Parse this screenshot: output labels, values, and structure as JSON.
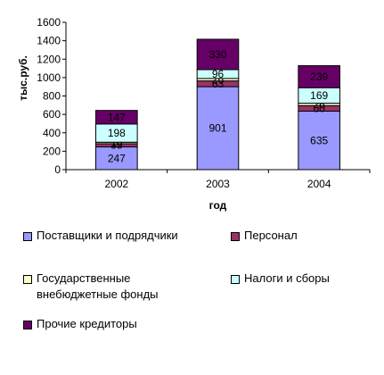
{
  "chart_data": {
    "type": "bar",
    "stacked": true,
    "categories": [
      "2002",
      "2003",
      "2004"
    ],
    "xlabel": "год",
    "ylabel": "тыс.руб.",
    "ylim": [
      0,
      1600
    ],
    "yticks": [
      "0",
      "200",
      "400",
      "600",
      "800",
      "1000",
      "1200",
      "1400",
      "1600"
    ],
    "grid": false,
    "legend_position": "bottom",
    "series": [
      {
        "name": "Поставщики и подрядчики",
        "values": [
          247,
          901,
          635
        ],
        "labels": [
          "247",
          "901",
          "635"
        ],
        "color": "#9999ff",
        "label_color": "#000000"
      },
      {
        "name": "Персонал",
        "values": [
          35,
          63,
          60
        ],
        "labels": [
          "35",
          "63",
          "60"
        ],
        "color": "#993366",
        "label_color": "#000000"
      },
      {
        "name": "Государственные\nвнебюджетные фонды",
        "values": [
          16,
          26,
          26
        ],
        "labels": [
          "16",
          "26",
          "26"
        ],
        "color": "#ffffcc",
        "label_color": "#000000"
      },
      {
        "name": "Налоги и сборы",
        "values": [
          198,
          96,
          169
        ],
        "labels": [
          "198",
          "96",
          "169"
        ],
        "color": "#ccffff",
        "label_color": "#000000"
      },
      {
        "name": "Прочие кредиторы",
        "values": [
          147,
          330,
          239
        ],
        "labels": [
          "147",
          "330",
          "239"
        ],
        "color": "#660066",
        "label_color": "#000000"
      }
    ]
  }
}
